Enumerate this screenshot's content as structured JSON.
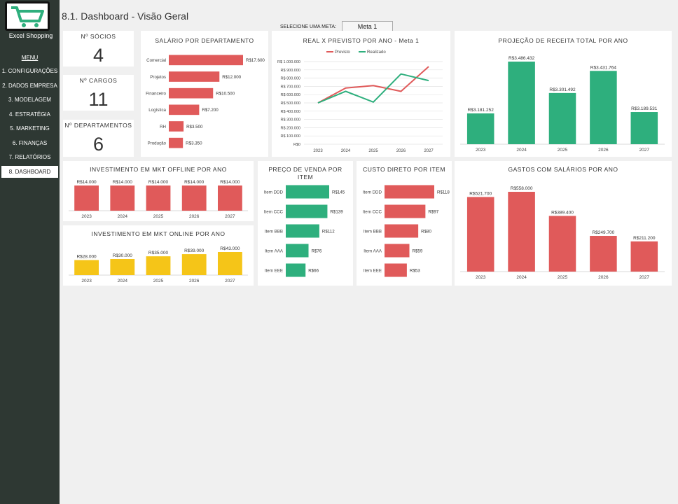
{
  "app": {
    "brand": "Excel Shopping",
    "page_title": "8.1. Dashboard - Visão Geral"
  },
  "menu": {
    "title": "MENU",
    "items": [
      "1. CONFIGURAÇÕES",
      "2. DADOS EMPRESA",
      "3. MODELAGEM",
      "4. ESTRATÉGIA",
      "5. MARKETING",
      "6. FINANÇAS",
      "7. RELATÓRIOS",
      "8. DASHBOARD"
    ],
    "active_index": 7
  },
  "meta_select": {
    "label": "SELECIONE UMA META:",
    "value": "Meta 1"
  },
  "kpis": {
    "socios": {
      "label": "Nº SÓCIOS",
      "value": "4"
    },
    "cargos": {
      "label": "Nº CARGOS",
      "value": "11"
    },
    "departamentos": {
      "label": "Nº DEPARTAMENTOS",
      "value": "6"
    }
  },
  "colors": {
    "red": "#e05a5a",
    "green": "#2eaf7d",
    "yellow": "#f5c518",
    "sidebar": "#2e3833"
  },
  "chart_data": [
    {
      "id": "salario",
      "type": "bar",
      "orientation": "horizontal",
      "title": "SALÁRIO POR DEPARTAMENTO",
      "categories": [
        "Comercial",
        "Projetos",
        "Financeiro",
        "Logística",
        "RH",
        "Produção"
      ],
      "values": [
        17600,
        12000,
        10500,
        7200,
        3500,
        3350
      ],
      "labels": [
        "R$17.600",
        "R$12.000",
        "R$10.500",
        "R$7.200",
        "R$3.500",
        "R$3.350"
      ],
      "color": "#e05a5a"
    },
    {
      "id": "real_previsto",
      "type": "line",
      "title": "REAL X PREVISTO POR ANO - Meta 1",
      "x": [
        "2023",
        "2024",
        "2025",
        "2026",
        "2027"
      ],
      "yticks": [
        "R$ 1.000.000",
        "R$ 900.000",
        "R$ 800.000",
        "R$ 700.000",
        "R$ 600.000",
        "R$ 500.000",
        "R$ 400.000",
        "R$ 300.000",
        "R$ 200.000",
        "R$ 100.000",
        "R$0"
      ],
      "ylim": [
        0,
        1000000
      ],
      "series": [
        {
          "name": "Previsto",
          "color": "#e05a5a",
          "values": [
            500000,
            680000,
            710000,
            640000,
            940000
          ]
        },
        {
          "name": "Realizado",
          "color": "#2eaf7d",
          "values": [
            500000,
            640000,
            510000,
            850000,
            770000
          ]
        }
      ],
      "legend": "top"
    },
    {
      "id": "receita",
      "type": "bar",
      "title": "PROJEÇÃO DE RECEITA TOTAL POR ANO",
      "categories": [
        "2023",
        "2024",
        "2025",
        "2026",
        "2027"
      ],
      "values": [
        3181252,
        3486432,
        3301492,
        3431764,
        3189531
      ],
      "labels": [
        "R$3.181.252",
        "R$3.486.432",
        "R$3.301.492",
        "R$3.431.764",
        "R$3.189.531"
      ],
      "color": "#2eaf7d"
    },
    {
      "id": "mkt_offline",
      "type": "bar",
      "title": "INVESTIMENTO EM MKT OFFLINE POR ANO",
      "categories": [
        "2023",
        "2024",
        "2025",
        "2026",
        "2027"
      ],
      "values": [
        14000,
        14000,
        14000,
        14000,
        14000
      ],
      "labels": [
        "R$14.000",
        "R$14.000",
        "R$14.000",
        "R$14.000",
        "R$14.000"
      ],
      "color": "#e05a5a"
    },
    {
      "id": "mkt_online",
      "type": "bar",
      "title": "INVESTIMENTO EM MKT ONLINE POR ANO",
      "categories": [
        "2023",
        "2024",
        "2025",
        "2026",
        "2027"
      ],
      "values": [
        28000,
        30000,
        35000,
        39000,
        43000
      ],
      "labels": [
        "R$28.000",
        "R$30.000",
        "R$35.000",
        "R$39.000",
        "R$43.000"
      ],
      "color": "#f5c518"
    },
    {
      "id": "preco_venda",
      "type": "bar",
      "orientation": "horizontal",
      "title": "PREÇO DE VENDA POR ITEM",
      "categories": [
        "Item DDD",
        "Item CCC",
        "Item BBB",
        "Item AAA",
        "Item EEE"
      ],
      "values": [
        145,
        139,
        112,
        76,
        66
      ],
      "labels": [
        "R$145",
        "R$139",
        "R$112",
        "R$76",
        "R$66"
      ],
      "color": "#2eaf7d"
    },
    {
      "id": "custo_direto",
      "type": "bar",
      "orientation": "horizontal",
      "title": "CUSTO DIRETO POR ITEM",
      "categories": [
        "Item DDD",
        "Item CCC",
        "Item BBB",
        "Item AAA",
        "Item EEE"
      ],
      "values": [
        118,
        97,
        80,
        59,
        53
      ],
      "labels": [
        "R$118",
        "R$97",
        "R$80",
        "R$59",
        "R$53"
      ],
      "color": "#e05a5a"
    },
    {
      "id": "gastos_salarios",
      "type": "bar",
      "title": "GASTOS COM SALÁRIOS POR ANO",
      "categories": [
        "2023",
        "2024",
        "2025",
        "2026",
        "2027"
      ],
      "values": [
        521700,
        558000,
        389400,
        249700,
        211200
      ],
      "labels": [
        "R$521.700",
        "R$558.000",
        "R$389.400",
        "R$249.700",
        "R$211.200"
      ],
      "color": "#e05a5a"
    }
  ]
}
